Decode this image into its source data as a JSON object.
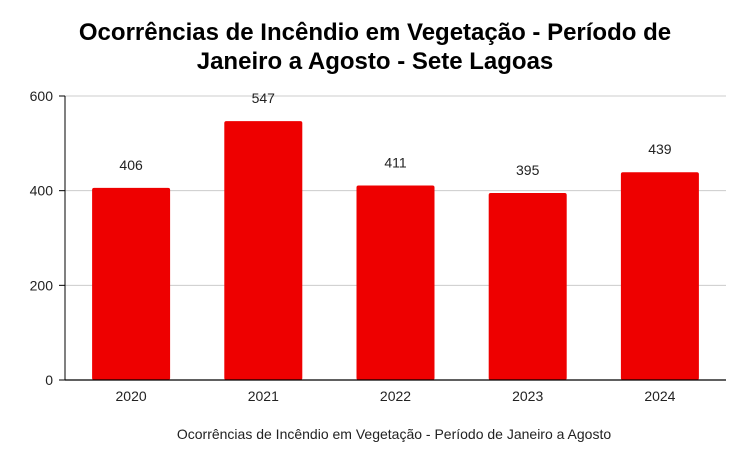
{
  "chart_data": {
    "type": "bar",
    "title_lines": [
      "Ocorrências de Incêndio em Vegetação - Período de",
      "Janeiro a Agosto - Sete Lagoas"
    ],
    "xlabel": "Ocorrências de Incêndio em Vegetação - Período de Janeiro a Agosto",
    "ylabel": "",
    "categories": [
      "2020",
      "2021",
      "2022",
      "2023",
      "2024"
    ],
    "values": [
      406,
      547,
      411,
      395,
      439
    ],
    "data_labels": [
      "406",
      "547",
      "411",
      "395",
      "439"
    ],
    "ylim": [
      0,
      600
    ],
    "yticks": [
      0,
      200,
      400,
      600
    ],
    "ytick_labels": [
      "0",
      "200",
      "400",
      "600"
    ],
    "grid": true,
    "legend": "none",
    "bar_color": "#ee0000",
    "grid_color": "#cccccc",
    "axis_color": "#000000"
  }
}
